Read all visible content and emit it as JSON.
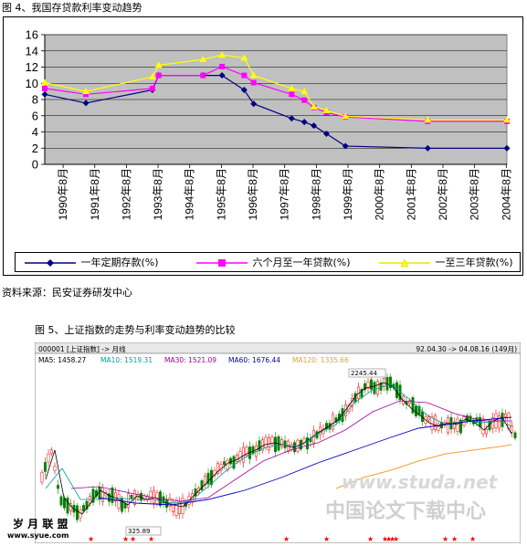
{
  "fig4": {
    "caption": "图 4、我国存贷款利率变动趋势",
    "source": "资料来源：民安证券研发中心",
    "chart_data": {
      "type": "line",
      "ylim": [
        0,
        16
      ],
      "yticks": [
        0,
        2,
        4,
        6,
        8,
        10,
        12,
        14,
        16
      ],
      "x_range": [
        1990,
        2004.6
      ],
      "x_ticks": [
        1990.58,
        1991.58,
        1992.58,
        1993.58,
        1994.58,
        1995.58,
        1996.58,
        1997.58,
        1998.58,
        1999.58,
        2000.58,
        2001.58,
        2002.58,
        2003.58,
        2004.58
      ],
      "x_tick_labels": [
        "1990年8月",
        "1991年8月",
        "1992年8月",
        "1993年8月",
        "1994年8月",
        "1995年8月",
        "1996年8月",
        "1997年8月",
        "1998年8月",
        "1999年8月",
        "2000年8月",
        "2001年8月",
        "2002年8月",
        "2003年8月",
        "2004年8月"
      ],
      "grid": true,
      "legend_position": "bottom",
      "series": [
        {
          "name": "一年定期存款(%)",
          "color": "#00007f",
          "marker": "diamond",
          "points": [
            [
              1990.0,
              8.64
            ],
            [
              1991.3,
              7.56
            ],
            [
              1993.4,
              9.18
            ],
            [
              1993.6,
              10.98
            ],
            [
              1995.0,
              10.98
            ],
            [
              1995.6,
              10.98
            ],
            [
              1996.3,
              9.18
            ],
            [
              1996.6,
              7.47
            ],
            [
              1997.8,
              5.67
            ],
            [
              1998.2,
              5.22
            ],
            [
              1998.5,
              4.77
            ],
            [
              1998.9,
              3.78
            ],
            [
              1999.5,
              2.25
            ],
            [
              2002.1,
              1.98
            ],
            [
              2004.6,
              1.98
            ]
          ]
        },
        {
          "name": "六个月至一年贷款(%)",
          "color": "#ff00ff",
          "marker": "square",
          "points": [
            [
              1990.0,
              9.36
            ],
            [
              1991.3,
              8.64
            ],
            [
              1993.4,
              9.36
            ],
            [
              1993.6,
              10.98
            ],
            [
              1995.0,
              10.98
            ],
            [
              1995.6,
              12.06
            ],
            [
              1996.3,
              10.98
            ],
            [
              1996.6,
              10.08
            ],
            [
              1997.8,
              8.64
            ],
            [
              1998.2,
              7.92
            ],
            [
              1998.5,
              7.02
            ],
            [
              1998.9,
              6.39
            ],
            [
              1999.5,
              5.85
            ],
            [
              2002.1,
              5.31
            ],
            [
              2004.6,
              5.31
            ]
          ]
        },
        {
          "name": "一至三年贷款(%)",
          "color": "#ffff00",
          "marker": "triangle",
          "points": [
            [
              1990.0,
              10.08
            ],
            [
              1991.3,
              9.0
            ],
            [
              1993.4,
              10.8
            ],
            [
              1993.6,
              12.24
            ],
            [
              1995.0,
              12.96
            ],
            [
              1995.6,
              13.5
            ],
            [
              1996.3,
              13.14
            ],
            [
              1996.6,
              10.98
            ],
            [
              1997.8,
              9.36
            ],
            [
              1998.2,
              9.0
            ],
            [
              1998.5,
              7.11
            ],
            [
              1998.9,
              6.66
            ],
            [
              1999.5,
              5.94
            ],
            [
              2002.1,
              5.49
            ],
            [
              2004.6,
              5.49
            ]
          ]
        }
      ]
    }
  },
  "fig5": {
    "caption": "图 5、上证指数的走势与利率变动趋势的比较",
    "header_left": "000001 [上证指数] -> 月线",
    "header_right": "92.04.30 -> 04.08.16 (149月)",
    "ma_labels": [
      {
        "text": "MA5: 1458.27",
        "color": "#000000"
      },
      {
        "text": "MA10: 1519.31",
        "color": "#00a0a0"
      },
      {
        "text": "MA30: 1521.09",
        "color": "#a000a0"
      },
      {
        "text": "MA60: 1676.44",
        "color": "#0000a0"
      },
      {
        "text": "MA120: 1335.66",
        "color": "#e0a040"
      }
    ],
    "high_label": "2245.44",
    "low_label": "325.89",
    "watermarks": [
      "www.studa.net",
      "中国论文下载中心",
      "岁 月 联 盟",
      "www.syue.com"
    ]
  }
}
